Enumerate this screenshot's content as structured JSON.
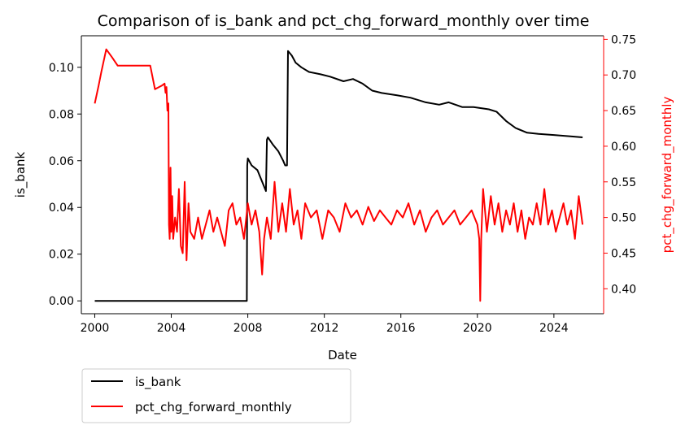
{
  "chart_data": {
    "type": "line",
    "title": "Comparison of is_bank and pct_chg_forward_monthly over time",
    "xlabel": "Date",
    "ylabel_left": "is_bank",
    "ylabel_right": "pct_chg_forward_monthly",
    "xlim": [
      1999.3,
      2026.6
    ],
    "ylim_left": [
      -0.0055,
      0.1135
    ],
    "ylim_right": [
      0.365,
      0.755
    ],
    "x_ticks": [
      2000,
      2004,
      2008,
      2012,
      2016,
      2020,
      2024
    ],
    "y_ticks_left": [
      0.0,
      0.02,
      0.04,
      0.06,
      0.08,
      0.1
    ],
    "y_ticks_right": [
      0.4,
      0.45,
      0.5,
      0.55,
      0.6,
      0.65,
      0.7,
      0.75
    ],
    "grid": false,
    "legend_position": "below-left",
    "colors": {
      "is_bank": "#000000",
      "pct_chg_forward_monthly": "#ff0000",
      "right_axis": "#ff0000"
    },
    "series": [
      {
        "name": "is_bank",
        "axis": "left",
        "points": [
          [
            2000.0,
            0.0
          ],
          [
            2007.95,
            0.0
          ],
          [
            2007.97,
            0.058
          ],
          [
            2008.0,
            0.061
          ],
          [
            2008.2,
            0.058
          ],
          [
            2008.5,
            0.056
          ],
          [
            2008.8,
            0.05
          ],
          [
            2008.95,
            0.047
          ],
          [
            2009.0,
            0.069
          ],
          [
            2009.05,
            0.07
          ],
          [
            2009.3,
            0.067
          ],
          [
            2009.6,
            0.064
          ],
          [
            2009.85,
            0.06
          ],
          [
            2009.95,
            0.058
          ],
          [
            2010.05,
            0.058
          ],
          [
            2010.1,
            0.107
          ],
          [
            2010.3,
            0.105
          ],
          [
            2010.5,
            0.102
          ],
          [
            2010.8,
            0.1
          ],
          [
            2011.2,
            0.098
          ],
          [
            2011.8,
            0.097
          ],
          [
            2012.3,
            0.096
          ],
          [
            2013.0,
            0.094
          ],
          [
            2013.5,
            0.095
          ],
          [
            2014.0,
            0.093
          ],
          [
            2014.5,
            0.09
          ],
          [
            2015.0,
            0.089
          ],
          [
            2015.8,
            0.088
          ],
          [
            2016.5,
            0.087
          ],
          [
            2017.3,
            0.085
          ],
          [
            2018.0,
            0.084
          ],
          [
            2018.5,
            0.085
          ],
          [
            2019.2,
            0.083
          ],
          [
            2019.8,
            0.083
          ],
          [
            2020.6,
            0.082
          ],
          [
            2021.0,
            0.081
          ],
          [
            2021.5,
            0.077
          ],
          [
            2022.0,
            0.074
          ],
          [
            2022.6,
            0.072
          ],
          [
            2023.2,
            0.0715
          ],
          [
            2024.0,
            0.071
          ],
          [
            2024.8,
            0.0705
          ],
          [
            2025.5,
            0.07
          ]
        ]
      },
      {
        "name": "pct_chg_forward_monthly",
        "axis": "right",
        "points": [
          [
            2000.0,
            0.66
          ],
          [
            2000.2,
            0.685
          ],
          [
            2000.35,
            0.705
          ],
          [
            2000.6,
            0.736
          ],
          [
            2000.9,
            0.725
          ],
          [
            2001.2,
            0.713
          ],
          [
            2001.8,
            0.713
          ],
          [
            2002.4,
            0.713
          ],
          [
            2002.9,
            0.713
          ],
          [
            2003.15,
            0.68
          ],
          [
            2003.5,
            0.685
          ],
          [
            2003.65,
            0.688
          ],
          [
            2003.7,
            0.675
          ],
          [
            2003.75,
            0.683
          ],
          [
            2003.8,
            0.65
          ],
          [
            2003.85,
            0.66
          ],
          [
            2003.88,
            0.49
          ],
          [
            2003.92,
            0.47
          ],
          [
            2003.96,
            0.57
          ],
          [
            2004.0,
            0.48
          ],
          [
            2004.05,
            0.53
          ],
          [
            2004.1,
            0.47
          ],
          [
            2004.2,
            0.5
          ],
          [
            2004.3,
            0.48
          ],
          [
            2004.4,
            0.54
          ],
          [
            2004.5,
            0.46
          ],
          [
            2004.6,
            0.45
          ],
          [
            2004.7,
            0.55
          ],
          [
            2004.8,
            0.44
          ],
          [
            2004.9,
            0.52
          ],
          [
            2005.0,
            0.48
          ],
          [
            2005.2,
            0.47
          ],
          [
            2005.4,
            0.5
          ],
          [
            2005.6,
            0.47
          ],
          [
            2005.8,
            0.49
          ],
          [
            2006.0,
            0.51
          ],
          [
            2006.2,
            0.48
          ],
          [
            2006.4,
            0.5
          ],
          [
            2006.6,
            0.48
          ],
          [
            2006.8,
            0.46
          ],
          [
            2007.0,
            0.51
          ],
          [
            2007.2,
            0.52
          ],
          [
            2007.4,
            0.49
          ],
          [
            2007.6,
            0.5
          ],
          [
            2007.8,
            0.47
          ],
          [
            2008.0,
            0.52
          ],
          [
            2008.2,
            0.49
          ],
          [
            2008.4,
            0.51
          ],
          [
            2008.6,
            0.48
          ],
          [
            2008.75,
            0.42
          ],
          [
            2008.85,
            0.47
          ],
          [
            2009.0,
            0.5
          ],
          [
            2009.2,
            0.47
          ],
          [
            2009.4,
            0.55
          ],
          [
            2009.6,
            0.48
          ],
          [
            2009.8,
            0.52
          ],
          [
            2010.0,
            0.48
          ],
          [
            2010.2,
            0.54
          ],
          [
            2010.4,
            0.49
          ],
          [
            2010.6,
            0.51
          ],
          [
            2010.8,
            0.47
          ],
          [
            2011.0,
            0.52
          ],
          [
            2011.3,
            0.5
          ],
          [
            2011.6,
            0.51
          ],
          [
            2011.9,
            0.47
          ],
          [
            2012.2,
            0.51
          ],
          [
            2012.5,
            0.5
          ],
          [
            2012.8,
            0.48
          ],
          [
            2013.1,
            0.52
          ],
          [
            2013.4,
            0.5
          ],
          [
            2013.7,
            0.51
          ],
          [
            2014.0,
            0.49
          ],
          [
            2014.3,
            0.515
          ],
          [
            2014.6,
            0.495
          ],
          [
            2014.9,
            0.51
          ],
          [
            2015.2,
            0.5
          ],
          [
            2015.5,
            0.49
          ],
          [
            2015.8,
            0.51
          ],
          [
            2016.1,
            0.5
          ],
          [
            2016.4,
            0.52
          ],
          [
            2016.7,
            0.49
          ],
          [
            2017.0,
            0.51
          ],
          [
            2017.3,
            0.48
          ],
          [
            2017.6,
            0.5
          ],
          [
            2017.9,
            0.51
          ],
          [
            2018.2,
            0.49
          ],
          [
            2018.5,
            0.5
          ],
          [
            2018.8,
            0.51
          ],
          [
            2019.1,
            0.49
          ],
          [
            2019.4,
            0.5
          ],
          [
            2019.7,
            0.51
          ],
          [
            2020.0,
            0.49
          ],
          [
            2020.1,
            0.47
          ],
          [
            2020.15,
            0.383
          ],
          [
            2020.2,
            0.47
          ],
          [
            2020.3,
            0.54
          ],
          [
            2020.5,
            0.48
          ],
          [
            2020.7,
            0.53
          ],
          [
            2020.9,
            0.49
          ],
          [
            2021.1,
            0.52
          ],
          [
            2021.3,
            0.48
          ],
          [
            2021.5,
            0.51
          ],
          [
            2021.7,
            0.49
          ],
          [
            2021.9,
            0.52
          ],
          [
            2022.1,
            0.48
          ],
          [
            2022.3,
            0.51
          ],
          [
            2022.5,
            0.47
          ],
          [
            2022.7,
            0.5
          ],
          [
            2022.9,
            0.49
          ],
          [
            2023.1,
            0.52
          ],
          [
            2023.3,
            0.49
          ],
          [
            2023.5,
            0.54
          ],
          [
            2023.7,
            0.49
          ],
          [
            2023.9,
            0.51
          ],
          [
            2024.1,
            0.48
          ],
          [
            2024.3,
            0.5
          ],
          [
            2024.5,
            0.52
          ],
          [
            2024.7,
            0.49
          ],
          [
            2024.9,
            0.51
          ],
          [
            2025.1,
            0.47
          ],
          [
            2025.3,
            0.53
          ],
          [
            2025.5,
            0.49
          ]
        ]
      }
    ]
  }
}
